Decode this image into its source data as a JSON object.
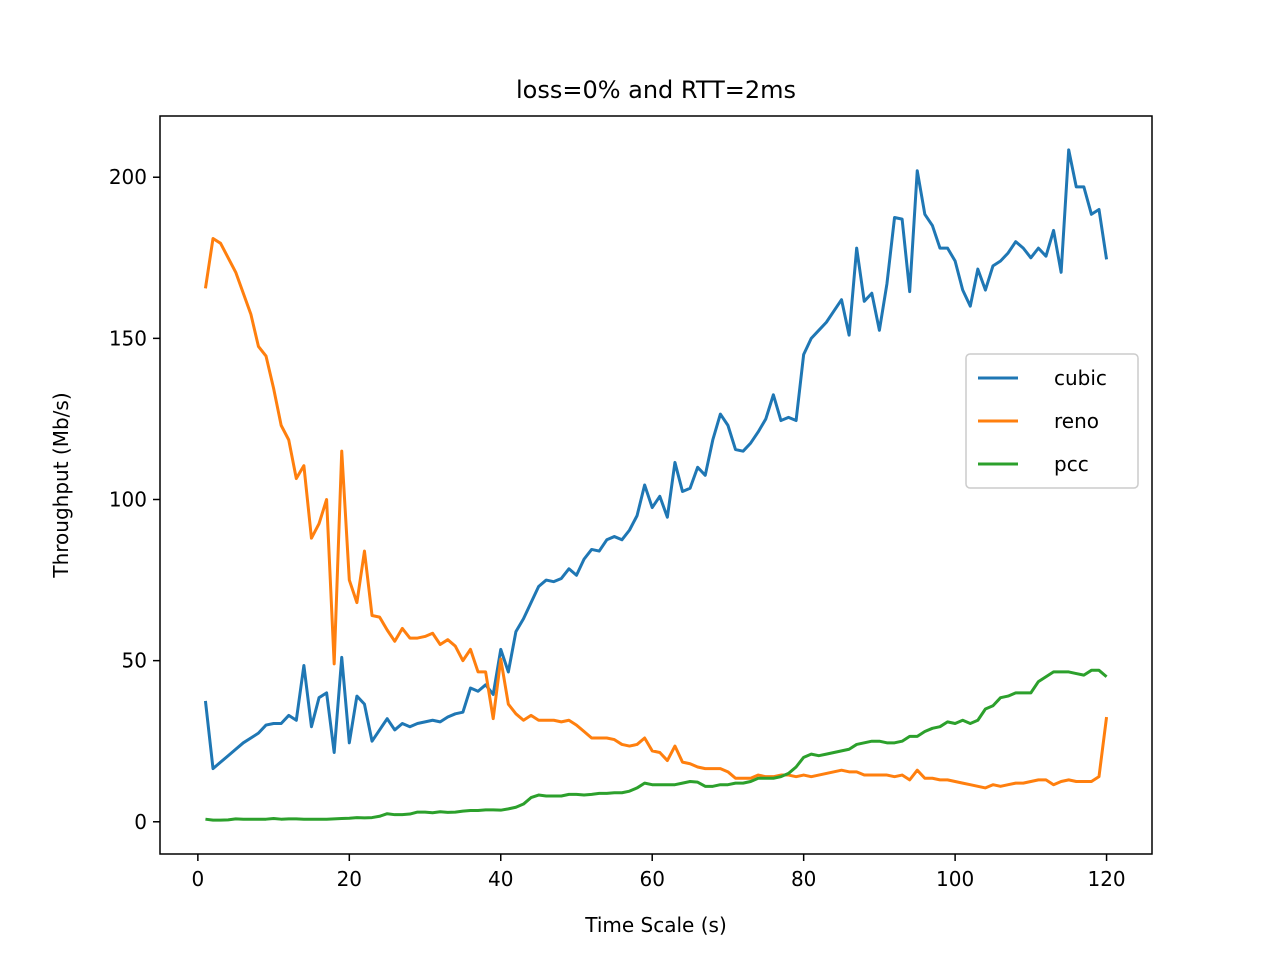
{
  "chart_data": {
    "type": "line",
    "title": "loss=0% and RTT=2ms",
    "xlabel": "Time Scale (s)",
    "ylabel": "Throughput (Mb/s)",
    "xlim": [
      -5,
      126
    ],
    "ylim": [
      -10,
      219
    ],
    "xticks": [
      0,
      20,
      40,
      60,
      80,
      100,
      120
    ],
    "yticks": [
      0,
      50,
      100,
      150,
      200
    ],
    "grid": false,
    "legend_position": "center-right",
    "x": [
      1,
      2,
      3,
      4,
      5,
      6,
      7,
      8,
      9,
      10,
      11,
      12,
      13,
      14,
      15,
      16,
      17,
      18,
      19,
      20,
      21,
      22,
      23,
      24,
      25,
      26,
      27,
      28,
      29,
      30,
      31,
      32,
      33,
      34,
      35,
      36,
      37,
      38,
      39,
      40,
      41,
      42,
      43,
      44,
      45,
      46,
      47,
      48,
      49,
      50,
      51,
      52,
      53,
      54,
      55,
      56,
      57,
      58,
      59,
      60,
      61,
      62,
      63,
      64,
      65,
      66,
      67,
      68,
      69,
      70,
      71,
      72,
      73,
      74,
      75,
      76,
      77,
      78,
      79,
      80,
      81,
      82,
      83,
      84,
      85,
      86,
      87,
      88,
      89,
      90,
      91,
      92,
      93,
      94,
      95,
      96,
      97,
      98,
      99,
      100,
      101,
      102,
      103,
      104,
      105,
      106,
      107,
      108,
      109,
      110,
      111,
      112,
      113,
      114,
      115,
      116,
      117,
      118,
      119,
      120
    ],
    "series": [
      {
        "name": "cubic",
        "color": "#1f77b4",
        "values": [
          37.5,
          16.5,
          18.5,
          20.5,
          22.5,
          24.5,
          26,
          27.5,
          30,
          30.5,
          30.5,
          33,
          31.5,
          48.5,
          29.5,
          38.5,
          40,
          21.5,
          51,
          24.5,
          39,
          36.5,
          25,
          28.5,
          32,
          28.5,
          30.5,
          29.5,
          30.5,
          31,
          31.5,
          31,
          32.5,
          33.5,
          34,
          41.5,
          40.5,
          42.5,
          39.5,
          53.5,
          46.5,
          59,
          63,
          68,
          73,
          75,
          74.5,
          75.5,
          78.5,
          76.5,
          81.5,
          84.5,
          84,
          87.5,
          88.5,
          87.5,
          90.5,
          95,
          104.5,
          97.5,
          101,
          94.5,
          111.5,
          102.5,
          103.5,
          110,
          107.5,
          118.5,
          126.5,
          123,
          115.5,
          115,
          117.5,
          121,
          125,
          132.5,
          124.5,
          125.5,
          124.5,
          145,
          150,
          152.5,
          155,
          158.5,
          162,
          151,
          178,
          161.5,
          164,
          152.5,
          167,
          187.5,
          187,
          164.5,
          202,
          188.5,
          185,
          178,
          178,
          174,
          165,
          160,
          171.5,
          165,
          172.5,
          174,
          176.5,
          180,
          178,
          175,
          178,
          175.5,
          183.5,
          170.5,
          208.5,
          197,
          197,
          188.5,
          190,
          174.5
        ]
      },
      {
        "name": "reno",
        "color": "#ff7f0e",
        "values": [
          165.5,
          181,
          179.5,
          175,
          170.5,
          164,
          157.5,
          147.5,
          144.5,
          134.5,
          123,
          118.5,
          106.5,
          110.5,
          88,
          92.5,
          100,
          49,
          115,
          75,
          68,
          84,
          64,
          63.5,
          59.5,
          56,
          60,
          57,
          57,
          57.5,
          58.5,
          55,
          56.5,
          54.5,
          50,
          53.5,
          46.5,
          46.5,
          32,
          50.5,
          36.5,
          33.5,
          31.5,
          33,
          31.5,
          31.5,
          31.5,
          31,
          31.5,
          30,
          28,
          26,
          26,
          26,
          25.5,
          24,
          23.5,
          24,
          26,
          22,
          21.5,
          19,
          23.5,
          18.5,
          18,
          17,
          16.5,
          16.5,
          16.5,
          15.5,
          13.5,
          13.5,
          13.5,
          14.5,
          14,
          14,
          14.5,
          14.5,
          14,
          14.5,
          14,
          14.5,
          15,
          15.5,
          16,
          15.5,
          15.5,
          14.5,
          14.5,
          14.5,
          14.5,
          14,
          14.5,
          13,
          16,
          13.5,
          13.5,
          13,
          13,
          12.5,
          12,
          11.5,
          11,
          10.5,
          11.5,
          11,
          11.5,
          12,
          12,
          12.5,
          13,
          13,
          11.5,
          12.5,
          13,
          12.5,
          12.5,
          12.5,
          14,
          32.5
        ]
      },
      {
        "name": "pcc",
        "color": "#2ca02c",
        "values": [
          0.8,
          0.5,
          0.5,
          0.6,
          0.9,
          0.8,
          0.8,
          0.8,
          0.8,
          1,
          0.8,
          0.9,
          0.9,
          0.8,
          0.8,
          0.8,
          0.8,
          0.9,
          1,
          1.1,
          1.3,
          1.2,
          1.3,
          1.7,
          2.5,
          2.2,
          2.2,
          2.4,
          3,
          3,
          2.8,
          3.1,
          2.9,
          3,
          3.3,
          3.5,
          3.5,
          3.7,
          3.7,
          3.6,
          4,
          4.5,
          5.5,
          7.5,
          8.3,
          8,
          8,
          8,
          8.5,
          8.5,
          8.3,
          8.5,
          8.8,
          8.8,
          9,
          9,
          9.5,
          10.5,
          12,
          11.5,
          11.5,
          11.5,
          11.5,
          12,
          12.5,
          12.3,
          11,
          11,
          11.5,
          11.5,
          12,
          12,
          12.5,
          13.5,
          13.5,
          13.5,
          14,
          15,
          17,
          20,
          21,
          20.5,
          21,
          21.5,
          22,
          22.5,
          24,
          24.5,
          25,
          25,
          24.5,
          24.5,
          25,
          26.5,
          26.5,
          28,
          29,
          29.5,
          31,
          30.5,
          31.5,
          30.5,
          31.5,
          35,
          36,
          38.5,
          39,
          40,
          40,
          40,
          43.5,
          45,
          46.5,
          46.5,
          46.5,
          46,
          45.5,
          47,
          47,
          45
        ]
      }
    ]
  }
}
